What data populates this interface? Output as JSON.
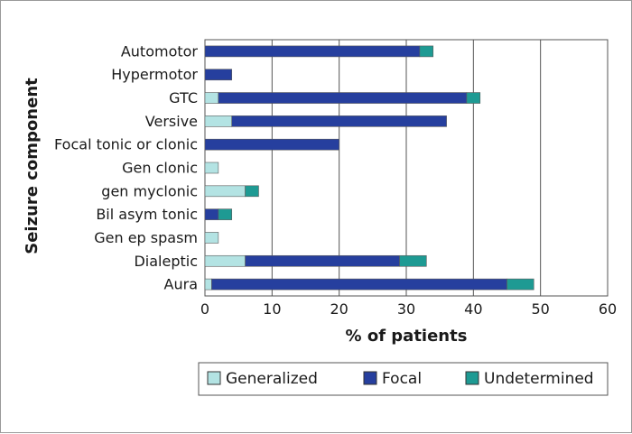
{
  "chart_data": {
    "type": "bar",
    "orientation": "horizontal",
    "stacked": true,
    "categories": [
      "Automotor",
      "Hypermotor",
      "GTC",
      "Versive",
      "Focal tonic or clonic",
      "Gen clonic",
      "gen myclonic",
      "Bil asym tonic",
      "Gen ep spasm",
      "Dialeptic",
      "Aura"
    ],
    "series": [
      {
        "name": "Generalized",
        "color": "#b3e3e3",
        "values": [
          0,
          0,
          2,
          4,
          0,
          2,
          6,
          0,
          2,
          6,
          1
        ]
      },
      {
        "name": "Focal",
        "color": "#263f9e",
        "values": [
          32,
          4,
          37,
          32,
          20,
          0,
          0,
          2,
          0,
          23,
          44
        ]
      },
      {
        "name": "Undetermined",
        "color": "#1e9a93",
        "values": [
          2,
          0,
          2,
          0,
          0,
          0,
          2,
          2,
          0,
          4,
          4
        ]
      }
    ],
    "xlabel": "% of patients",
    "ylabel": "Seizure component",
    "xlim": [
      0,
      60
    ],
    "xticks": [
      0,
      10,
      20,
      30,
      40,
      50,
      60
    ],
    "grid": "vertical",
    "legend_position": "bottom"
  }
}
